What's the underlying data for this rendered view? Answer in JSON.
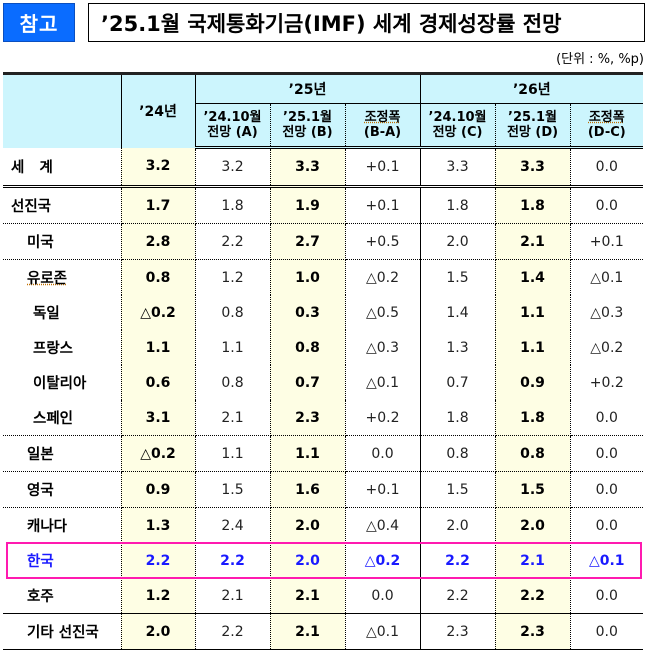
{
  "header": {
    "badge": "참고",
    "title": "’25.1월 국제통화기금(IMF) 세계 경제성장률 전망",
    "unit": "(단위 : %, %p)"
  },
  "table": {
    "headers": {
      "y24": "’24년",
      "y25": "’25년",
      "y26": "’26년",
      "sub": [
        {
          "l1": "’24.10월",
          "l2": "전망 (A)"
        },
        {
          "l1": "’25.1월",
          "l2": "전망 (B)"
        },
        {
          "l1": "조정폭",
          "l2": "(B-A)"
        },
        {
          "l1": "’24.10월",
          "l2": "전망 (C)"
        },
        {
          "l1": "’25.1월",
          "l2": "전망 (D)"
        },
        {
          "l1": "조정폭",
          "l2": "(D-C)"
        }
      ]
    },
    "rows": [
      {
        "label": "세   계",
        "y24": "3.2",
        "a": "3.2",
        "b": "3.3",
        "ba": "+0.1",
        "c": "3.3",
        "d": "3.3",
        "dc": "0.0"
      },
      {
        "label": "선진국",
        "y24": "1.7",
        "a": "1.8",
        "b": "1.9",
        "ba": "+0.1",
        "c": "1.8",
        "d": "1.8",
        "dc": "0.0"
      },
      {
        "label": "미국",
        "y24": "2.8",
        "a": "2.2",
        "b": "2.7",
        "ba": "+0.5",
        "c": "2.0",
        "d": "2.1",
        "dc": "+0.1"
      },
      {
        "label": "유로존",
        "y24": "0.8",
        "a": "1.2",
        "b": "1.0",
        "ba": "△0.2",
        "c": "1.5",
        "d": "1.4",
        "dc": "△0.1"
      },
      {
        "label": "독일",
        "y24": "△0.2",
        "a": "0.8",
        "b": "0.3",
        "ba": "△0.5",
        "c": "1.4",
        "d": "1.1",
        "dc": "△0.3"
      },
      {
        "label": "프랑스",
        "y24": "1.1",
        "a": "1.1",
        "b": "0.8",
        "ba": "△0.3",
        "c": "1.3",
        "d": "1.1",
        "dc": "△0.2"
      },
      {
        "label": "이탈리아",
        "y24": "0.6",
        "a": "0.8",
        "b": "0.7",
        "ba": "△0.1",
        "c": "0.7",
        "d": "0.9",
        "dc": "+0.2"
      },
      {
        "label": "스페인",
        "y24": "3.1",
        "a": "2.1",
        "b": "2.3",
        "ba": "+0.2",
        "c": "1.8",
        "d": "1.8",
        "dc": "0.0"
      },
      {
        "label": "일본",
        "y24": "△0.2",
        "a": "1.1",
        "b": "1.1",
        "ba": "0.0",
        "c": "0.8",
        "d": "0.8",
        "dc": "0.0"
      },
      {
        "label": "영국",
        "y24": "0.9",
        "a": "1.5",
        "b": "1.6",
        "ba": "+0.1",
        "c": "1.5",
        "d": "1.5",
        "dc": "0.0"
      },
      {
        "label": "캐나다",
        "y24": "1.3",
        "a": "2.4",
        "b": "2.0",
        "ba": "△0.4",
        "c": "2.0",
        "d": "2.0",
        "dc": "0.0"
      },
      {
        "label": "한국",
        "y24": "2.2",
        "a": "2.2",
        "b": "2.0",
        "ba": "△0.2",
        "c": "2.2",
        "d": "2.1",
        "dc": "△0.1"
      },
      {
        "label": "호주",
        "y24": "1.2",
        "a": "2.1",
        "b": "2.1",
        "ba": "0.0",
        "c": "2.2",
        "d": "2.2",
        "dc": "0.0"
      },
      {
        "label": "기타 선진국",
        "y24": "2.0",
        "a": "2.2",
        "b": "2.1",
        "ba": "△0.1",
        "c": "2.3",
        "d": "2.3",
        "dc": "0.0"
      }
    ]
  },
  "colors": {
    "badge_bg": "#0a6cff",
    "header_bg": "#ccf5fd",
    "highlight_col_bg": "#fefee4",
    "korea_text": "#1a1aff",
    "korea_box": "#ff1ab0"
  }
}
